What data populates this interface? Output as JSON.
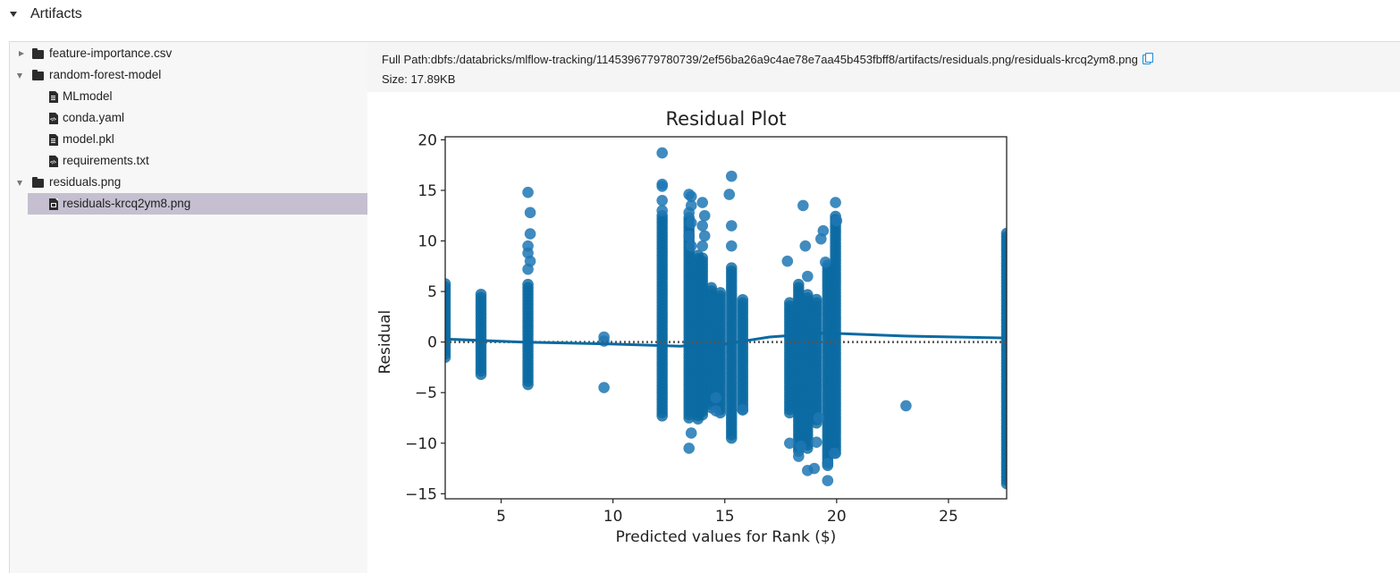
{
  "section": {
    "title": "Artifacts"
  },
  "tree": [
    {
      "label": "feature-importance.csv",
      "type": "folder",
      "state": "collapsed",
      "depth": 0
    },
    {
      "label": "random-forest-model",
      "type": "folder",
      "state": "expanded",
      "depth": 0
    },
    {
      "label": "MLmodel",
      "type": "file-text",
      "depth": 1
    },
    {
      "label": "conda.yaml",
      "type": "file-code",
      "depth": 1
    },
    {
      "label": "model.pkl",
      "type": "file-text",
      "depth": 1
    },
    {
      "label": "requirements.txt",
      "type": "file-code",
      "depth": 1
    },
    {
      "label": "residuals.png",
      "type": "folder",
      "state": "expanded",
      "depth": 0
    },
    {
      "label": "residuals-krcq2ym8.png",
      "type": "file-image",
      "depth": 1,
      "selected": true
    }
  ],
  "info": {
    "full_path": "Full Path:dbfs:/databricks/mlflow-tracking/1145396779780739/2ef56ba26a9c4ae78e7aa45b453fbff8/artifacts/residuals.png/residuals-krcq2ym8.png",
    "size": "Size: 17.89KB",
    "copy_icon": "copy-icon"
  },
  "colors": {
    "points": "#1f77b4",
    "dark_points": "#0b6aa2",
    "selected_row": "#c5bfd0",
    "copy_icon": "#1a8ad6"
  },
  "chart_data": {
    "type": "scatter",
    "title": "Residual Plot",
    "xlabel": "Predicted values for Rank ($)",
    "ylabel": "Residual",
    "xlim": [
      2.5,
      27.6
    ],
    "ylim": [
      -15.5,
      20.3
    ],
    "xticks": [
      5,
      10,
      15,
      20,
      25
    ],
    "yticks": [
      -15,
      -10,
      -5,
      0,
      5,
      10,
      15,
      20
    ],
    "grid": false,
    "reference_line": 0,
    "trend_line": [
      [
        2.5,
        0.3
      ],
      [
        6,
        0.0
      ],
      [
        10,
        -0.2
      ],
      [
        13,
        -0.4
      ],
      [
        15,
        -0.2
      ],
      [
        17,
        0.5
      ],
      [
        19.5,
        0.9
      ],
      [
        23,
        0.6
      ],
      [
        27.6,
        0.4
      ]
    ],
    "columns": [
      {
        "x": 2.5,
        "ymin": -1.5,
        "ymax": 6
      },
      {
        "x": 4.1,
        "ymin": -3.2,
        "ymax": 4.9
      },
      {
        "x": 6.2,
        "ymin": -4.2,
        "ymax": 5.8
      },
      {
        "x": 12.2,
        "ymin": -7.3,
        "ymax": 12.5
      },
      {
        "x": 13.4,
        "ymin": -7.5,
        "ymax": 12.5
      },
      {
        "x": 13.8,
        "ymin": -7.6,
        "ymax": 8.8
      },
      {
        "x": 14.0,
        "ymin": -7.2,
        "ymax": 8.6
      },
      {
        "x": 14.4,
        "ymin": -6.5,
        "ymax": 5.5
      },
      {
        "x": 14.8,
        "ymin": -7.0,
        "ymax": 5.0
      },
      {
        "x": 15.3,
        "ymin": -9.5,
        "ymax": 7.5
      },
      {
        "x": 15.8,
        "ymin": -6.7,
        "ymax": 4.5
      },
      {
        "x": 17.9,
        "ymin": -7.0,
        "ymax": 4.0
      },
      {
        "x": 18.3,
        "ymin": -10.8,
        "ymax": 5.7
      },
      {
        "x": 18.7,
        "ymin": -10.5,
        "ymax": 5.0
      },
      {
        "x": 19.1,
        "ymin": -8.0,
        "ymax": 4.5
      },
      {
        "x": 19.6,
        "ymin": -12.2,
        "ymax": 7.9
      },
      {
        "x": 19.95,
        "ymin": -11.0,
        "ymax": 12.5
      },
      {
        "x": 27.6,
        "ymin": -14.0,
        "ymax": 11.0
      }
    ],
    "points": [
      [
        6.2,
        14.8
      ],
      [
        6.3,
        12.8
      ],
      [
        6.3,
        10.7
      ],
      [
        6.2,
        9.5
      ],
      [
        6.2,
        8.8
      ],
      [
        6.3,
        8.0
      ],
      [
        6.2,
        7.2
      ],
      [
        9.6,
        0.5
      ],
      [
        9.6,
        0.1
      ],
      [
        9.6,
        -4.5
      ],
      [
        12.2,
        18.7
      ],
      [
        12.2,
        15.6
      ],
      [
        12.2,
        15.4
      ],
      [
        12.2,
        14.0
      ],
      [
        12.2,
        13.0
      ],
      [
        13.4,
        14.6
      ],
      [
        13.5,
        14.4
      ],
      [
        13.5,
        13.5
      ],
      [
        13.4,
        12.8
      ],
      [
        13.5,
        11.8
      ],
      [
        13.4,
        10.5
      ],
      [
        13.5,
        9.5
      ],
      [
        13.5,
        -9.0
      ],
      [
        13.4,
        -10.5
      ],
      [
        14.0,
        13.8
      ],
      [
        14.1,
        12.5
      ],
      [
        14.0,
        11.5
      ],
      [
        14.1,
        10.5
      ],
      [
        14.0,
        9.5
      ],
      [
        14.6,
        -5.5
      ],
      [
        14.6,
        -6.8
      ],
      [
        15.3,
        16.4
      ],
      [
        15.3,
        11.5
      ],
      [
        15.3,
        9.5
      ],
      [
        15.2,
        14.6
      ],
      [
        15.8,
        -6.7
      ],
      [
        17.8,
        8.0
      ],
      [
        17.9,
        -10.0
      ],
      [
        18.3,
        -11.3
      ],
      [
        18.4,
        -10.3
      ],
      [
        18.5,
        13.5
      ],
      [
        18.6,
        9.5
      ],
      [
        18.7,
        -12.7
      ],
      [
        18.7,
        6.5
      ],
      [
        19.0,
        -12.5
      ],
      [
        19.1,
        -9.9
      ],
      [
        19.2,
        -7.5
      ],
      [
        19.4,
        11.0
      ],
      [
        19.3,
        10.2
      ],
      [
        19.5,
        7.9
      ],
      [
        19.6,
        -13.7
      ],
      [
        19.6,
        -12.0
      ],
      [
        19.95,
        13.8
      ],
      [
        20.0,
        12.0
      ],
      [
        19.9,
        -11.0
      ],
      [
        23.1,
        -6.3
      ]
    ]
  }
}
